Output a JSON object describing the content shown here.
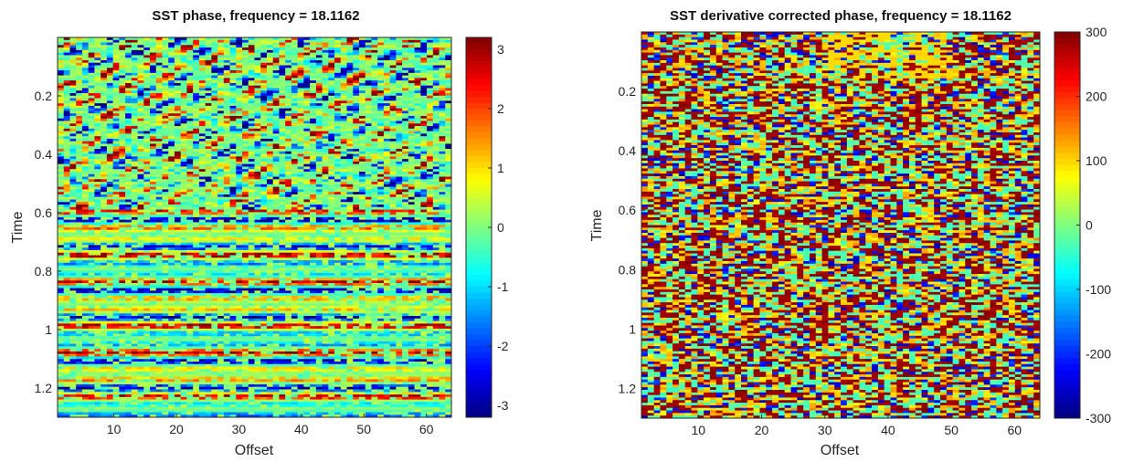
{
  "chart_data": [
    {
      "type": "heatmap",
      "title": "SST phase, frequency = 18.1162",
      "xlabel": "Offset",
      "ylabel": "Time",
      "xlim": [
        1,
        64
      ],
      "ylim": [
        1.3,
        0.0
      ],
      "xticks": [
        "10",
        "20",
        "30",
        "40",
        "50",
        "60"
      ],
      "yticks": [
        "0.2",
        "0.4",
        "0.6",
        "0.8",
        "1",
        "1.2"
      ],
      "colormap": "jet",
      "colorbar": {
        "range": [
          -3.2,
          3.2
        ],
        "ticks": [
          "3",
          "2",
          "1",
          "0",
          "-1",
          "-2",
          "-3"
        ]
      },
      "grid": false
    },
    {
      "type": "heatmap",
      "title": "SST derivative corrected phase, frequency = 18.1162",
      "xlabel": "Offset",
      "ylabel": "Time",
      "xlim": [
        1,
        64
      ],
      "ylim": [
        1.3,
        0.0
      ],
      "xticks": [
        "10",
        "20",
        "30",
        "40",
        "50",
        "60"
      ],
      "yticks": [
        "0.2",
        "0.4",
        "0.6",
        "0.8",
        "1",
        "1.2"
      ],
      "colormap": "jet",
      "colorbar": {
        "range": [
          -300,
          300
        ],
        "ticks": [
          "300",
          "200",
          "100",
          "0",
          "-100",
          "-200",
          "-300"
        ]
      },
      "grid": false
    }
  ]
}
